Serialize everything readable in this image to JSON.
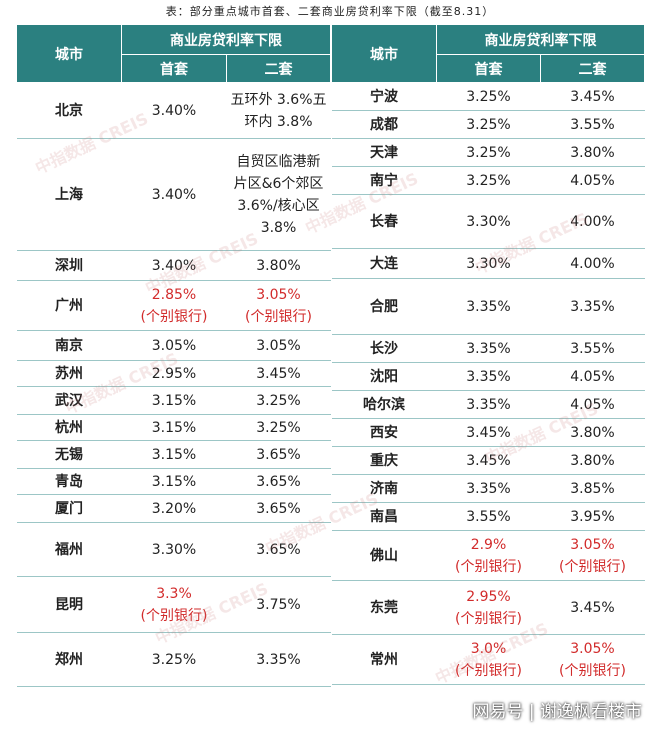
{
  "caption": "表：部分重点城市首套、二套商业房贷利率下限（截至8.31）",
  "headers": {
    "city": "城市",
    "group": "商业房贷利率下限",
    "first": "首套",
    "second": "二套"
  },
  "watermark": "中指数据 CREIS",
  "credit": "网易号 | 谢逸枫看楼市",
  "left": [
    {
      "city": "北京",
      "first": [
        "3.40%"
      ],
      "second": [
        "五环外 3.6%五",
        "环内 3.8%"
      ],
      "first_red": false,
      "second_red": false
    },
    {
      "city": "上海",
      "first": [
        "3.40%"
      ],
      "second": [
        "自贸区临港新",
        "片区&6个郊区",
        "3.6%/核心区",
        "3.8%"
      ],
      "first_red": false,
      "second_red": false
    },
    {
      "city": "深圳",
      "first": [
        "3.40%"
      ],
      "second": [
        "3.80%"
      ],
      "first_red": false,
      "second_red": false
    },
    {
      "city": "广州",
      "first": [
        "2.85%",
        "(个别银行)"
      ],
      "second": [
        "3.05%",
        "(个别银行)"
      ],
      "first_red": true,
      "second_red": true
    },
    {
      "city": "南京",
      "first": [
        "3.05%"
      ],
      "second": [
        "3.05%"
      ],
      "first_red": false,
      "second_red": false
    },
    {
      "city": "苏州",
      "first": [
        "2.95%"
      ],
      "second": [
        "3.45%"
      ],
      "first_red": false,
      "second_red": false
    },
    {
      "city": "武汉",
      "first": [
        "3.15%"
      ],
      "second": [
        "3.25%"
      ],
      "first_red": false,
      "second_red": false
    },
    {
      "city": "杭州",
      "first": [
        "3.15%"
      ],
      "second": [
        "3.25%"
      ],
      "first_red": false,
      "second_red": false
    },
    {
      "city": "无锡",
      "first": [
        "3.15%"
      ],
      "second": [
        "3.65%"
      ],
      "first_red": false,
      "second_red": false
    },
    {
      "city": "青岛",
      "first": [
        "3.15%"
      ],
      "second": [
        "3.65%"
      ],
      "first_red": false,
      "second_red": false
    },
    {
      "city": "厦门",
      "first": [
        "3.20%"
      ],
      "second": [
        "3.65%"
      ],
      "first_red": false,
      "second_red": false
    },
    {
      "city": "福州",
      "first": [
        "3.30%"
      ],
      "second": [
        "3.65%"
      ],
      "first_red": false,
      "second_red": false
    },
    {
      "city": "昆明",
      "first": [
        "3.3%",
        "(个别银行)"
      ],
      "second": [
        "3.75%"
      ],
      "first_red": true,
      "second_red": false
    },
    {
      "city": "郑州",
      "first": [
        "3.25%"
      ],
      "second": [
        "3.35%"
      ],
      "first_red": false,
      "second_red": false
    }
  ],
  "right": [
    {
      "city": "宁波",
      "first": [
        "3.25%"
      ],
      "second": [
        "3.45%"
      ],
      "first_red": false,
      "second_red": false
    },
    {
      "city": "成都",
      "first": [
        "3.25%"
      ],
      "second": [
        "3.55%"
      ],
      "first_red": false,
      "second_red": false
    },
    {
      "city": "天津",
      "first": [
        "3.25%"
      ],
      "second": [
        "3.80%"
      ],
      "first_red": false,
      "second_red": false
    },
    {
      "city": "南宁",
      "first": [
        "3.25%"
      ],
      "second": [
        "4.05%"
      ],
      "first_red": false,
      "second_red": false
    },
    {
      "city": "长春",
      "first": [
        "3.30%"
      ],
      "second": [
        "4.00%"
      ],
      "first_red": false,
      "second_red": false
    },
    {
      "city": "大连",
      "first": [
        "3.30%"
      ],
      "second": [
        "4.00%"
      ],
      "first_red": false,
      "second_red": false
    },
    {
      "city": "合肥",
      "first": [
        "3.35%"
      ],
      "second": [
        "3.35%"
      ],
      "first_red": false,
      "second_red": false
    },
    {
      "city": "长沙",
      "first": [
        "3.35%"
      ],
      "second": [
        "3.55%"
      ],
      "first_red": false,
      "second_red": false
    },
    {
      "city": "沈阳",
      "first": [
        "3.35%"
      ],
      "second": [
        "4.05%"
      ],
      "first_red": false,
      "second_red": false
    },
    {
      "city": "哈尔滨",
      "first": [
        "3.35%"
      ],
      "second": [
        "4.05%"
      ],
      "first_red": false,
      "second_red": false
    },
    {
      "city": "西安",
      "first": [
        "3.45%"
      ],
      "second": [
        "3.80%"
      ],
      "first_red": false,
      "second_red": false
    },
    {
      "city": "重庆",
      "first": [
        "3.45%"
      ],
      "second": [
        "3.80%"
      ],
      "first_red": false,
      "second_red": false
    },
    {
      "city": "济南",
      "first": [
        "3.35%"
      ],
      "second": [
        "3.85%"
      ],
      "first_red": false,
      "second_red": false
    },
    {
      "city": "南昌",
      "first": [
        "3.55%"
      ],
      "second": [
        "3.95%"
      ],
      "first_red": false,
      "second_red": false
    },
    {
      "city": "佛山",
      "first": [
        "2.9%",
        "(个别银行)"
      ],
      "second": [
        "3.05%",
        "(个别银行)"
      ],
      "first_red": true,
      "second_red": true
    },
    {
      "city": "东莞",
      "first": [
        "2.95%",
        "(个别银行)"
      ],
      "second": [
        "3.45%"
      ],
      "first_red": true,
      "second_red": false
    },
    {
      "city": "常州",
      "first": [
        "3.0%",
        "(个别银行)"
      ],
      "second": [
        "3.05%",
        "(个别银行)"
      ],
      "first_red": true,
      "second_red": true
    }
  ]
}
